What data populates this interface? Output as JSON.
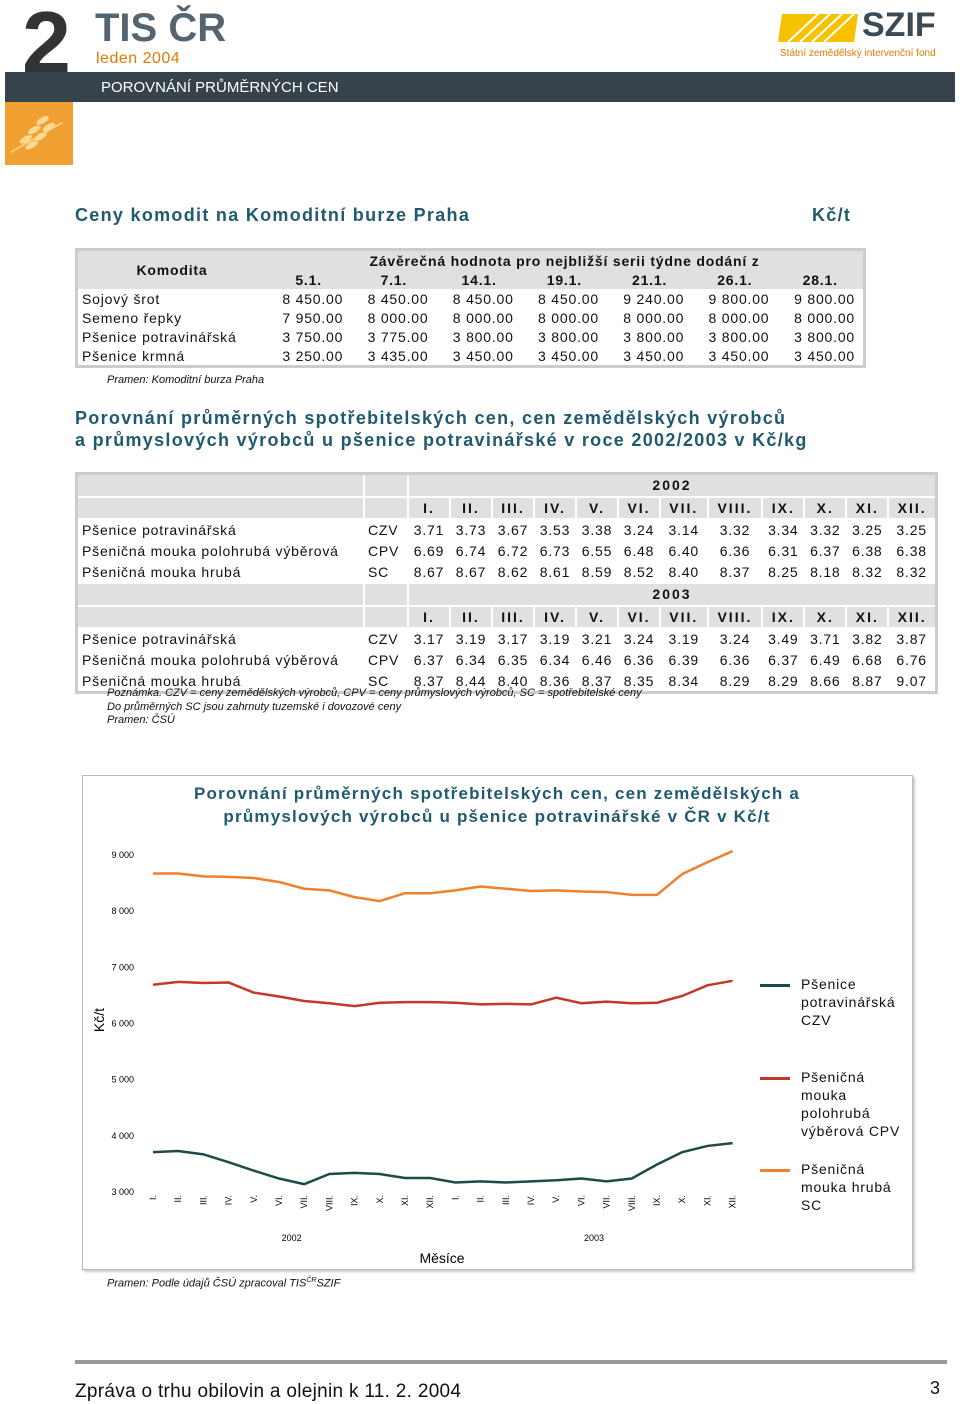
{
  "header": {
    "number": "2",
    "title": "TIS ČR",
    "subtitle": "leden 2004",
    "bar": "POROVNÁNÍ PRŮMĚRNÝCH CEN",
    "logo": "SZIF",
    "logo_sub": "Státní zemědělský intervenční fond"
  },
  "section1": {
    "title": "Ceny komodit na Komoditní burze Praha",
    "unit": "Kč/t"
  },
  "table1": {
    "label_header": "Komodita",
    "group_header": "Závěrečná hodnota pro nejbližší serii týdne dodání z",
    "columns": [
      "5.1.",
      "7.1.",
      "14.1.",
      "19.1.",
      "21.1.",
      "26.1.",
      "28.1."
    ],
    "rows": [
      {
        "label": "Sojový šrot",
        "values": [
          "8 450.00",
          "8 450.00",
          "8 450.00",
          "8 450.00",
          "9 240.00",
          "9 800.00",
          "9 800.00"
        ]
      },
      {
        "label": "Semeno řepky",
        "values": [
          "7 950.00",
          "8 000.00",
          "8 000.00",
          "8 000.00",
          "8 000.00",
          "8 000.00",
          "8 000.00"
        ]
      },
      {
        "label": "Pšenice potravinářská",
        "values": [
          "3 750.00",
          "3 775.00",
          "3 800.00",
          "3 800.00",
          "3 800.00",
          "3 800.00",
          "3 800.00"
        ]
      },
      {
        "label": "Pšenice krmná",
        "values": [
          "3 250.00",
          "3 435.00",
          "3 450.00",
          "3 450.00",
          "3 450.00",
          "3 450.00",
          "3 450.00"
        ]
      }
    ],
    "source": "Pramen: Komoditní burza Praha"
  },
  "section2": {
    "title_lines": [
      "Porovnání průměrných spotřebitelských cen, cen zemědělských výrobců",
      "a průmyslových výrobců u pšenice potravinářské v roce 2002/2003 v Kč/kg"
    ]
  },
  "table2": {
    "blocks": [
      {
        "year": "2002",
        "months": [
          "I.",
          "II.",
          "III.",
          "IV.",
          "V.",
          "VI.",
          "VII.",
          "VIII.",
          "IX.",
          "X.",
          "XI.",
          "XII."
        ],
        "rows": [
          {
            "label": "Pšenice potravinářská",
            "type": "CZV",
            "values": [
              "3.71",
              "3.73",
              "3.67",
              "3.53",
              "3.38",
              "3.24",
              "3.14",
              "3.32",
              "3.34",
              "3.32",
              "3.25",
              "3.25"
            ]
          },
          {
            "label": "Pšeničná mouka polohrubá výběrová",
            "type": "CPV",
            "values": [
              "6.69",
              "6.74",
              "6.72",
              "6.73",
              "6.55",
              "6.48",
              "6.40",
              "6.36",
              "6.31",
              "6.37",
              "6.38",
              "6.38"
            ]
          },
          {
            "label": "Pšeničná mouka hrubá",
            "type": "SC",
            "values": [
              "8.67",
              "8.67",
              "8.62",
              "8.61",
              "8.59",
              "8.52",
              "8.40",
              "8.37",
              "8.25",
              "8.18",
              "8.32",
              "8.32"
            ]
          }
        ]
      },
      {
        "year": "2003",
        "months": [
          "I.",
          "II.",
          "III.",
          "IV.",
          "V.",
          "VI.",
          "VII.",
          "VIII.",
          "IX.",
          "X.",
          "XI.",
          "XII."
        ],
        "rows": [
          {
            "label": "Pšenice potravinářská",
            "type": "CZV",
            "values": [
              "3.17",
              "3.19",
              "3.17",
              "3.19",
              "3.21",
              "3.24",
              "3.19",
              "3.24",
              "3.49",
              "3.71",
              "3.82",
              "3.87"
            ]
          },
          {
            "label": "Pšeničná mouka polohrubá výběrová",
            "type": "CPV",
            "values": [
              "6.37",
              "6.34",
              "6.35",
              "6.34",
              "6.46",
              "6.36",
              "6.39",
              "6.36",
              "6.37",
              "6.49",
              "6.68",
              "6.76"
            ]
          },
          {
            "label": "Pšeničná mouka hrubá",
            "type": "SC",
            "values": [
              "8.37",
              "8.44",
              "8.40",
              "8.36",
              "8.37",
              "8.35",
              "8.34",
              "8.29",
              "8.29",
              "8.66",
              "8.87",
              "9.07"
            ]
          }
        ]
      }
    ],
    "notes": [
      "Poznámka. CZV = ceny zemědělských výrobců, CPV = ceny průmyslových výrobců, SC = spotřebitelské ceny",
      "Do průměrných SC jsou zahrnuty tuzemské i dovozové ceny",
      "Pramen: ČSÚ"
    ]
  },
  "chart_data": {
    "type": "line",
    "title_lines": [
      "Porovnání průměrných spotřebitelských cen, cen zemědělských a",
      "průmyslových výrobců u pšenice potravinářské v ČR v Kč/t"
    ],
    "ylabel": "Kč/t",
    "xlabel": "Měsíce",
    "categories": [
      "I.",
      "II.",
      "III.",
      "IV.",
      "V.",
      "VI.",
      "VII.",
      "VIII.",
      "IX.",
      "X.",
      "XI.",
      "XII.",
      "I.",
      "II.",
      "III.",
      "IV.",
      "V.",
      "VI.",
      "VII.",
      "VIII.",
      "IX.",
      "X.",
      "XI.",
      "XII."
    ],
    "year_labels": [
      "2002",
      "2003"
    ],
    "ylim": [
      3000,
      9000
    ],
    "yticks": [
      {
        "value": 3000,
        "label": "3 000"
      },
      {
        "value": 4000,
        "label": "4 000"
      },
      {
        "value": 5000,
        "label": "5 000"
      },
      {
        "value": 6000,
        "label": "6 000"
      },
      {
        "value": 7000,
        "label": "7 000"
      },
      {
        "value": 8000,
        "label": "8 000"
      },
      {
        "value": 9000,
        "label": "9 000"
      }
    ],
    "grid": false,
    "legend": "right",
    "series": [
      {
        "name": "Pšenice potravinářská CZV",
        "color": "#1f4a4a",
        "values": [
          3710,
          3730,
          3670,
          3530,
          3380,
          3240,
          3140,
          3320,
          3340,
          3320,
          3250,
          3250,
          3170,
          3190,
          3170,
          3190,
          3210,
          3240,
          3190,
          3240,
          3490,
          3710,
          3820,
          3870
        ]
      },
      {
        "name": "Pšeničná mouka polohrubá výběrová CPV",
        "color": "#c0392b",
        "values": [
          6690,
          6740,
          6720,
          6730,
          6550,
          6480,
          6400,
          6360,
          6310,
          6370,
          6380,
          6380,
          6370,
          6340,
          6350,
          6340,
          6460,
          6360,
          6390,
          6360,
          6370,
          6490,
          6680,
          6760
        ]
      },
      {
        "name": "Pšeničná mouka hrubá SC",
        "color": "#f0802a",
        "values": [
          8670,
          8670,
          8620,
          8610,
          8590,
          8520,
          8400,
          8370,
          8250,
          8180,
          8320,
          8320,
          8370,
          8440,
          8400,
          8360,
          8370,
          8350,
          8340,
          8290,
          8290,
          8660,
          8870,
          9070
        ]
      }
    ],
    "source_prefix": "Pramen: Podle údajů ČSÚ zpracoval TIS",
    "source_sup": "ČR",
    "source_suffix": "SZIF"
  },
  "footer": {
    "text": "Zpráva o trhu obilovin a olejnin k 11. 2. 2004",
    "page": "3"
  }
}
